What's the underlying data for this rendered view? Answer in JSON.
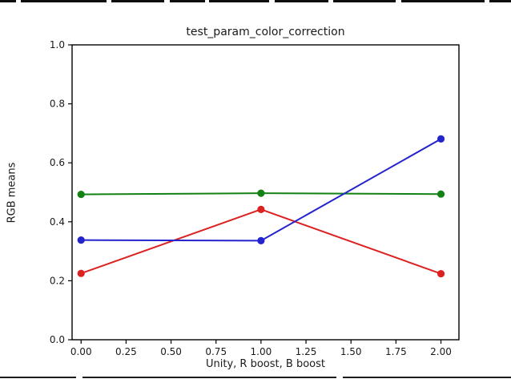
{
  "chart_data": {
    "type": "line",
    "title": "test_param_color_correction",
    "xlabel": "Unity, R boost, B boost",
    "ylabel": "RGB means",
    "x": [
      0,
      1,
      2
    ],
    "series": [
      {
        "name": "red",
        "color": "#dc2121",
        "values": [
          0.225,
          0.442,
          0.224
        ]
      },
      {
        "name": "green",
        "color": "#148114",
        "values": [
          0.493,
          0.497,
          0.494
        ]
      },
      {
        "name": "blue",
        "color": "#2424cd",
        "values": [
          0.338,
          0.336,
          0.681
        ]
      }
    ],
    "xticks": {
      "values": [
        0,
        0.25,
        0.5,
        0.75,
        1.0,
        1.25,
        1.5,
        1.75,
        2.0
      ],
      "labels": [
        "0.00",
        "0.25",
        "0.50",
        "0.75",
        "1.00",
        "1.25",
        "1.50",
        "1.75",
        "2.00"
      ]
    },
    "yticks": {
      "values": [
        0,
        0.2,
        0.4,
        0.6,
        0.8,
        1.0
      ],
      "labels": [
        "0.0",
        "0.2",
        "0.4",
        "0.6",
        "0.8",
        "1.0"
      ]
    },
    "xlim": [
      -0.05,
      2.1
    ],
    "ylim": [
      0,
      1
    ],
    "grid": false,
    "legend": "none",
    "marker": "circle",
    "axes_color": "#000000",
    "text_color": "#1a1a1a"
  }
}
